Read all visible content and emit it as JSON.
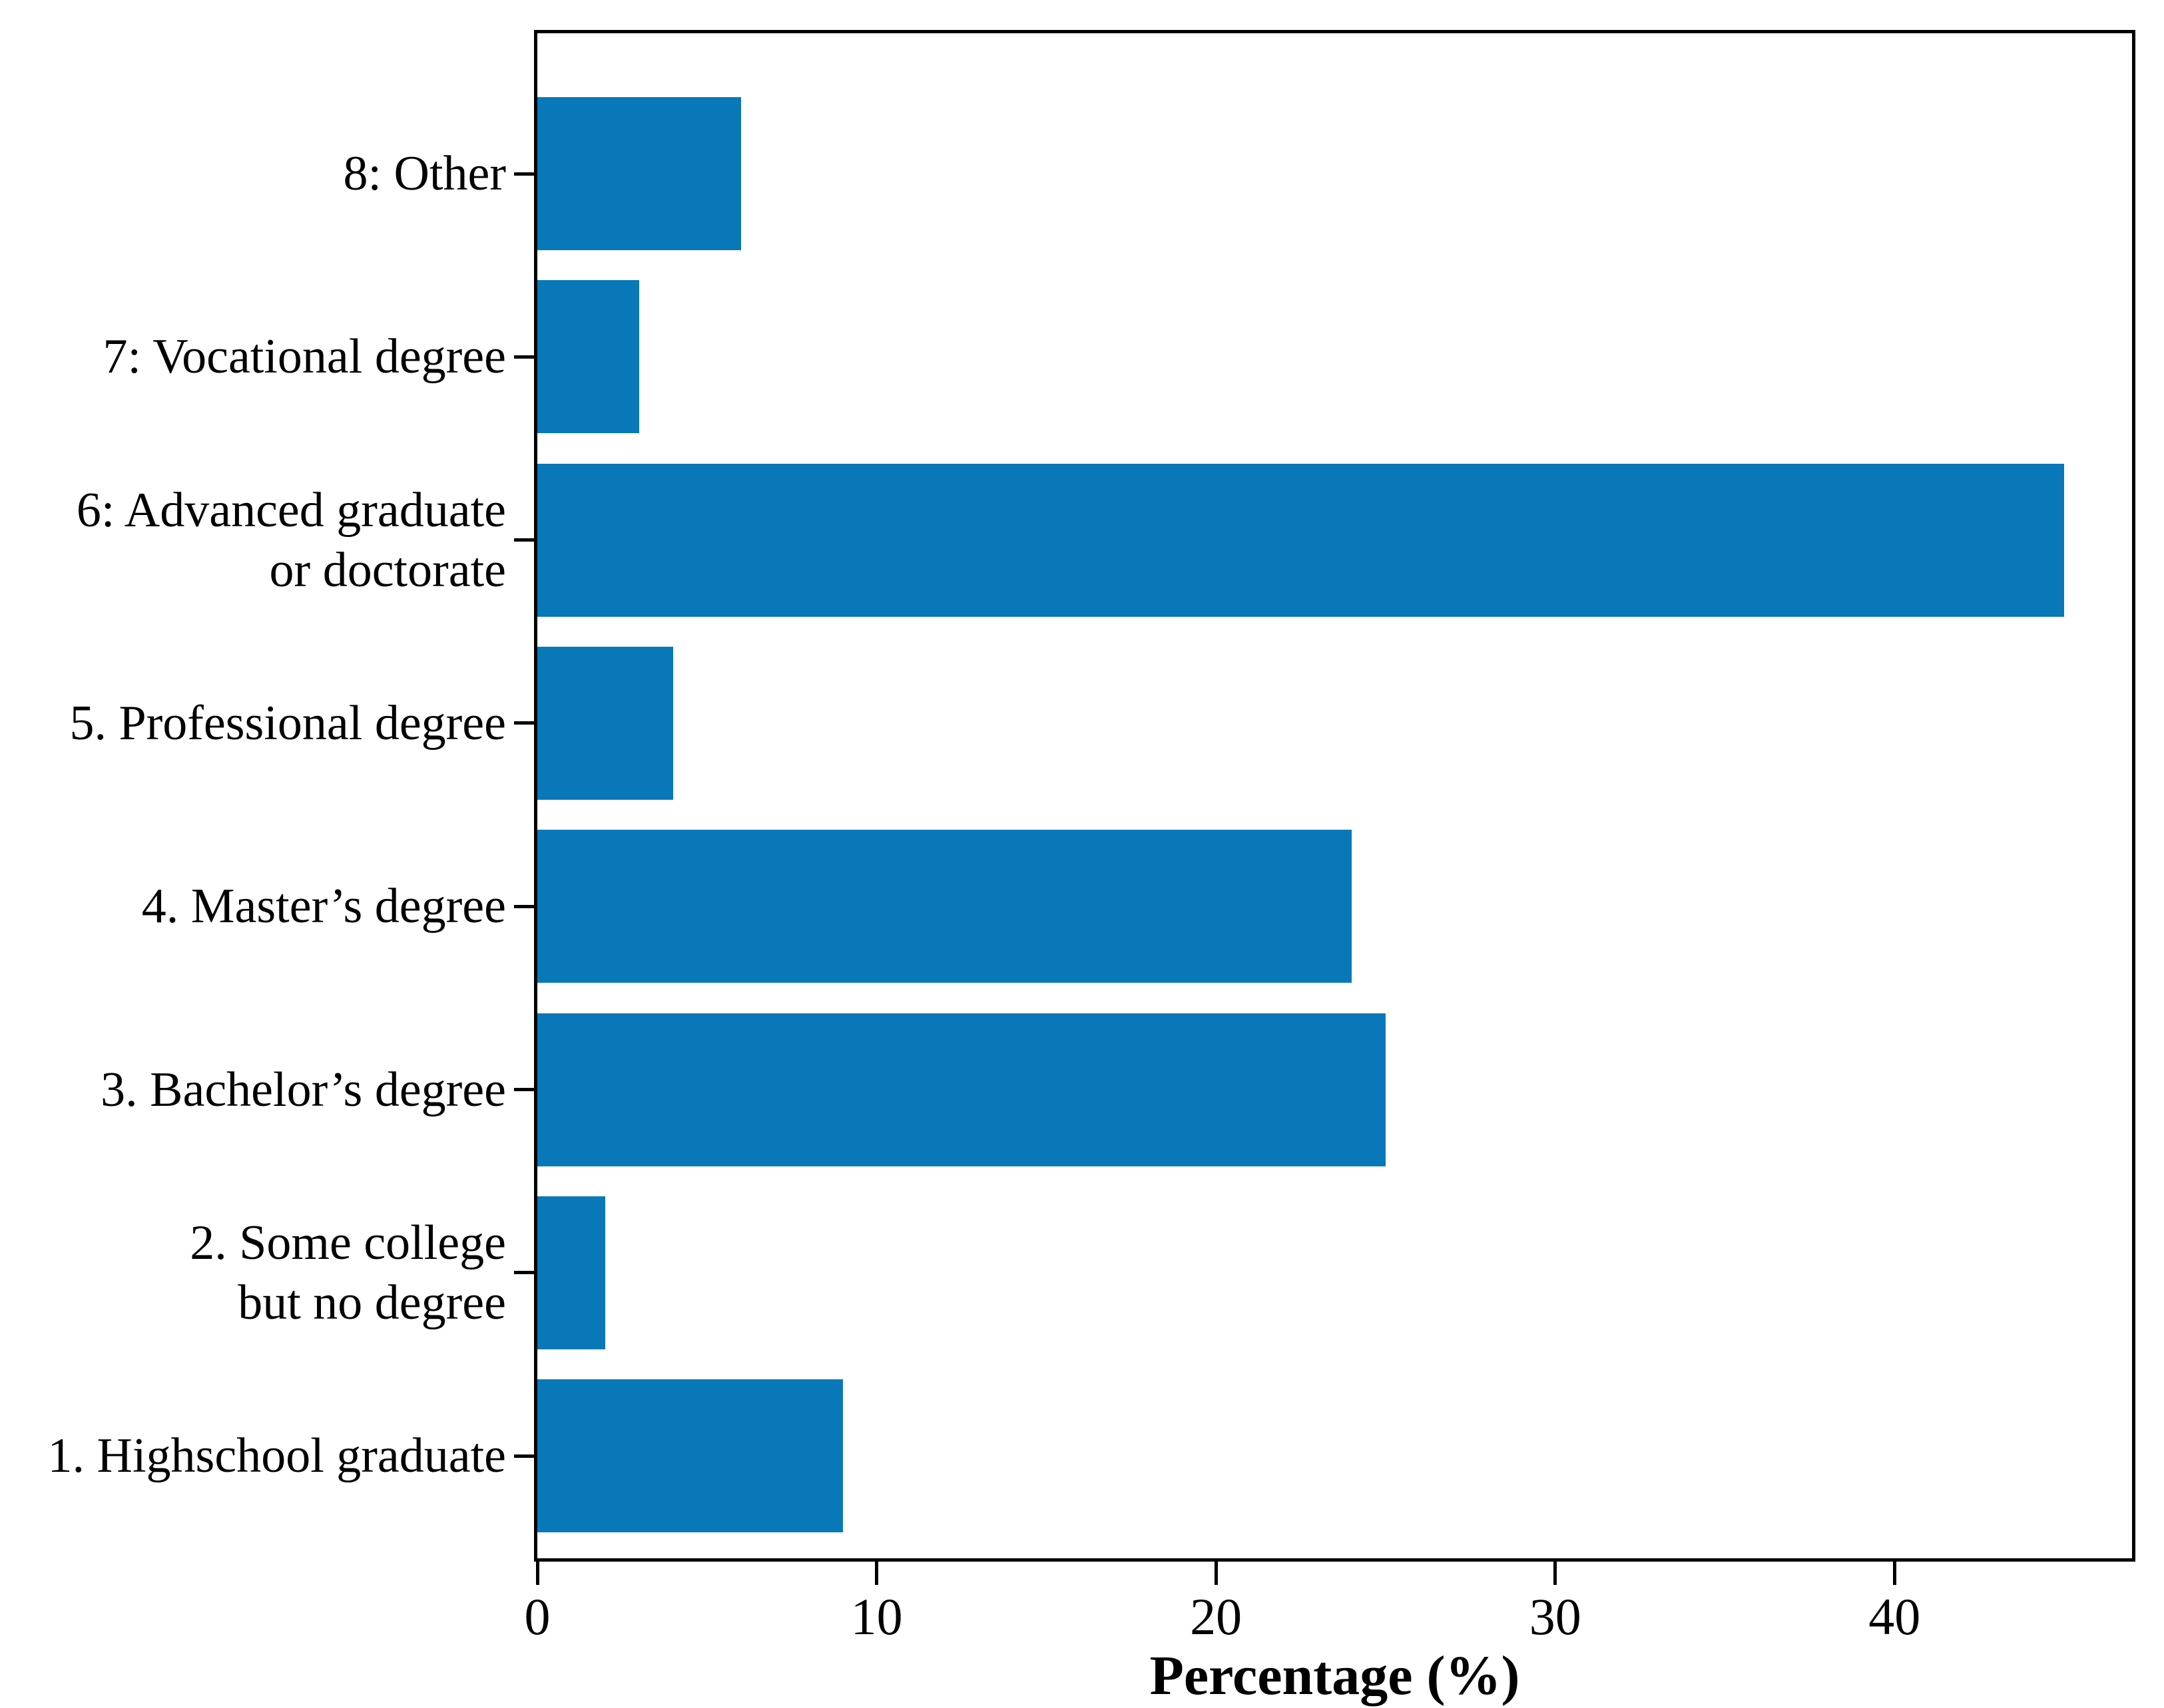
{
  "figure": {
    "background_color": "#ffffff",
    "text_color": "#000000"
  },
  "chart_data": {
    "type": "bar",
    "orientation": "horizontal",
    "title": "",
    "xlabel": "Percentage (%)",
    "ylabel": "",
    "bar_color": "#0878B8",
    "axis_color": "#000000",
    "grid": false,
    "legend": false,
    "xlim": [
      0,
      47
    ],
    "xticks": [
      0,
      10,
      20,
      30,
      40
    ],
    "categories": [
      {
        "label_lines": [
          "8: Other"
        ],
        "value": 6
      },
      {
        "label_lines": [
          "7: Vocational degree"
        ],
        "value": 3
      },
      {
        "label_lines": [
          "6: Advanced graduate",
          "or doctorate"
        ],
        "value": 45
      },
      {
        "label_lines": [
          "5. Professional degree"
        ],
        "value": 4
      },
      {
        "label_lines": [
          "4. Master’s degree"
        ],
        "value": 24
      },
      {
        "label_lines": [
          "3. Bachelor’s degree"
        ],
        "value": 25
      },
      {
        "label_lines": [
          "2. Some college",
          "but no degree"
        ],
        "value": 2
      },
      {
        "label_lines": [
          "1. Highschool graduate"
        ],
        "value": 9
      }
    ]
  }
}
